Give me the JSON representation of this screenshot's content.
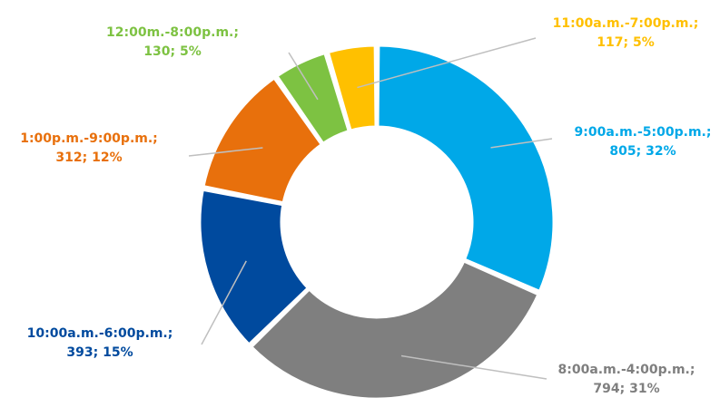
{
  "chart_data": {
    "type": "pie",
    "variant": "donut",
    "title": "",
    "legend": "none",
    "slices": [
      {
        "label": "9:00a.m.-5:00p.m.",
        "value": 805,
        "percent_label": "32%",
        "color": "#00A8E8"
      },
      {
        "label": "8:00a.m.-4:00p.m.",
        "value": 794,
        "percent_label": "31%",
        "color": "#7F7F7F"
      },
      {
        "label": "10:00a.m.-6:00p.m.",
        "value": 393,
        "percent_label": "15%",
        "color": "#004A9E"
      },
      {
        "label": "1:00p.m.-9:00p.m.",
        "value": 312,
        "percent_label": "12%",
        "color": "#E8700C"
      },
      {
        "label": "12:00m.-8:00p.m.",
        "value": 130,
        "percent_label": "5%",
        "color": "#7DC242"
      },
      {
        "label": "11:00a.m.-7:00p.m.",
        "value": 117,
        "percent_label": "5%",
        "color": "#FFC000"
      }
    ],
    "leader_line_color": "#BFBFBF"
  }
}
